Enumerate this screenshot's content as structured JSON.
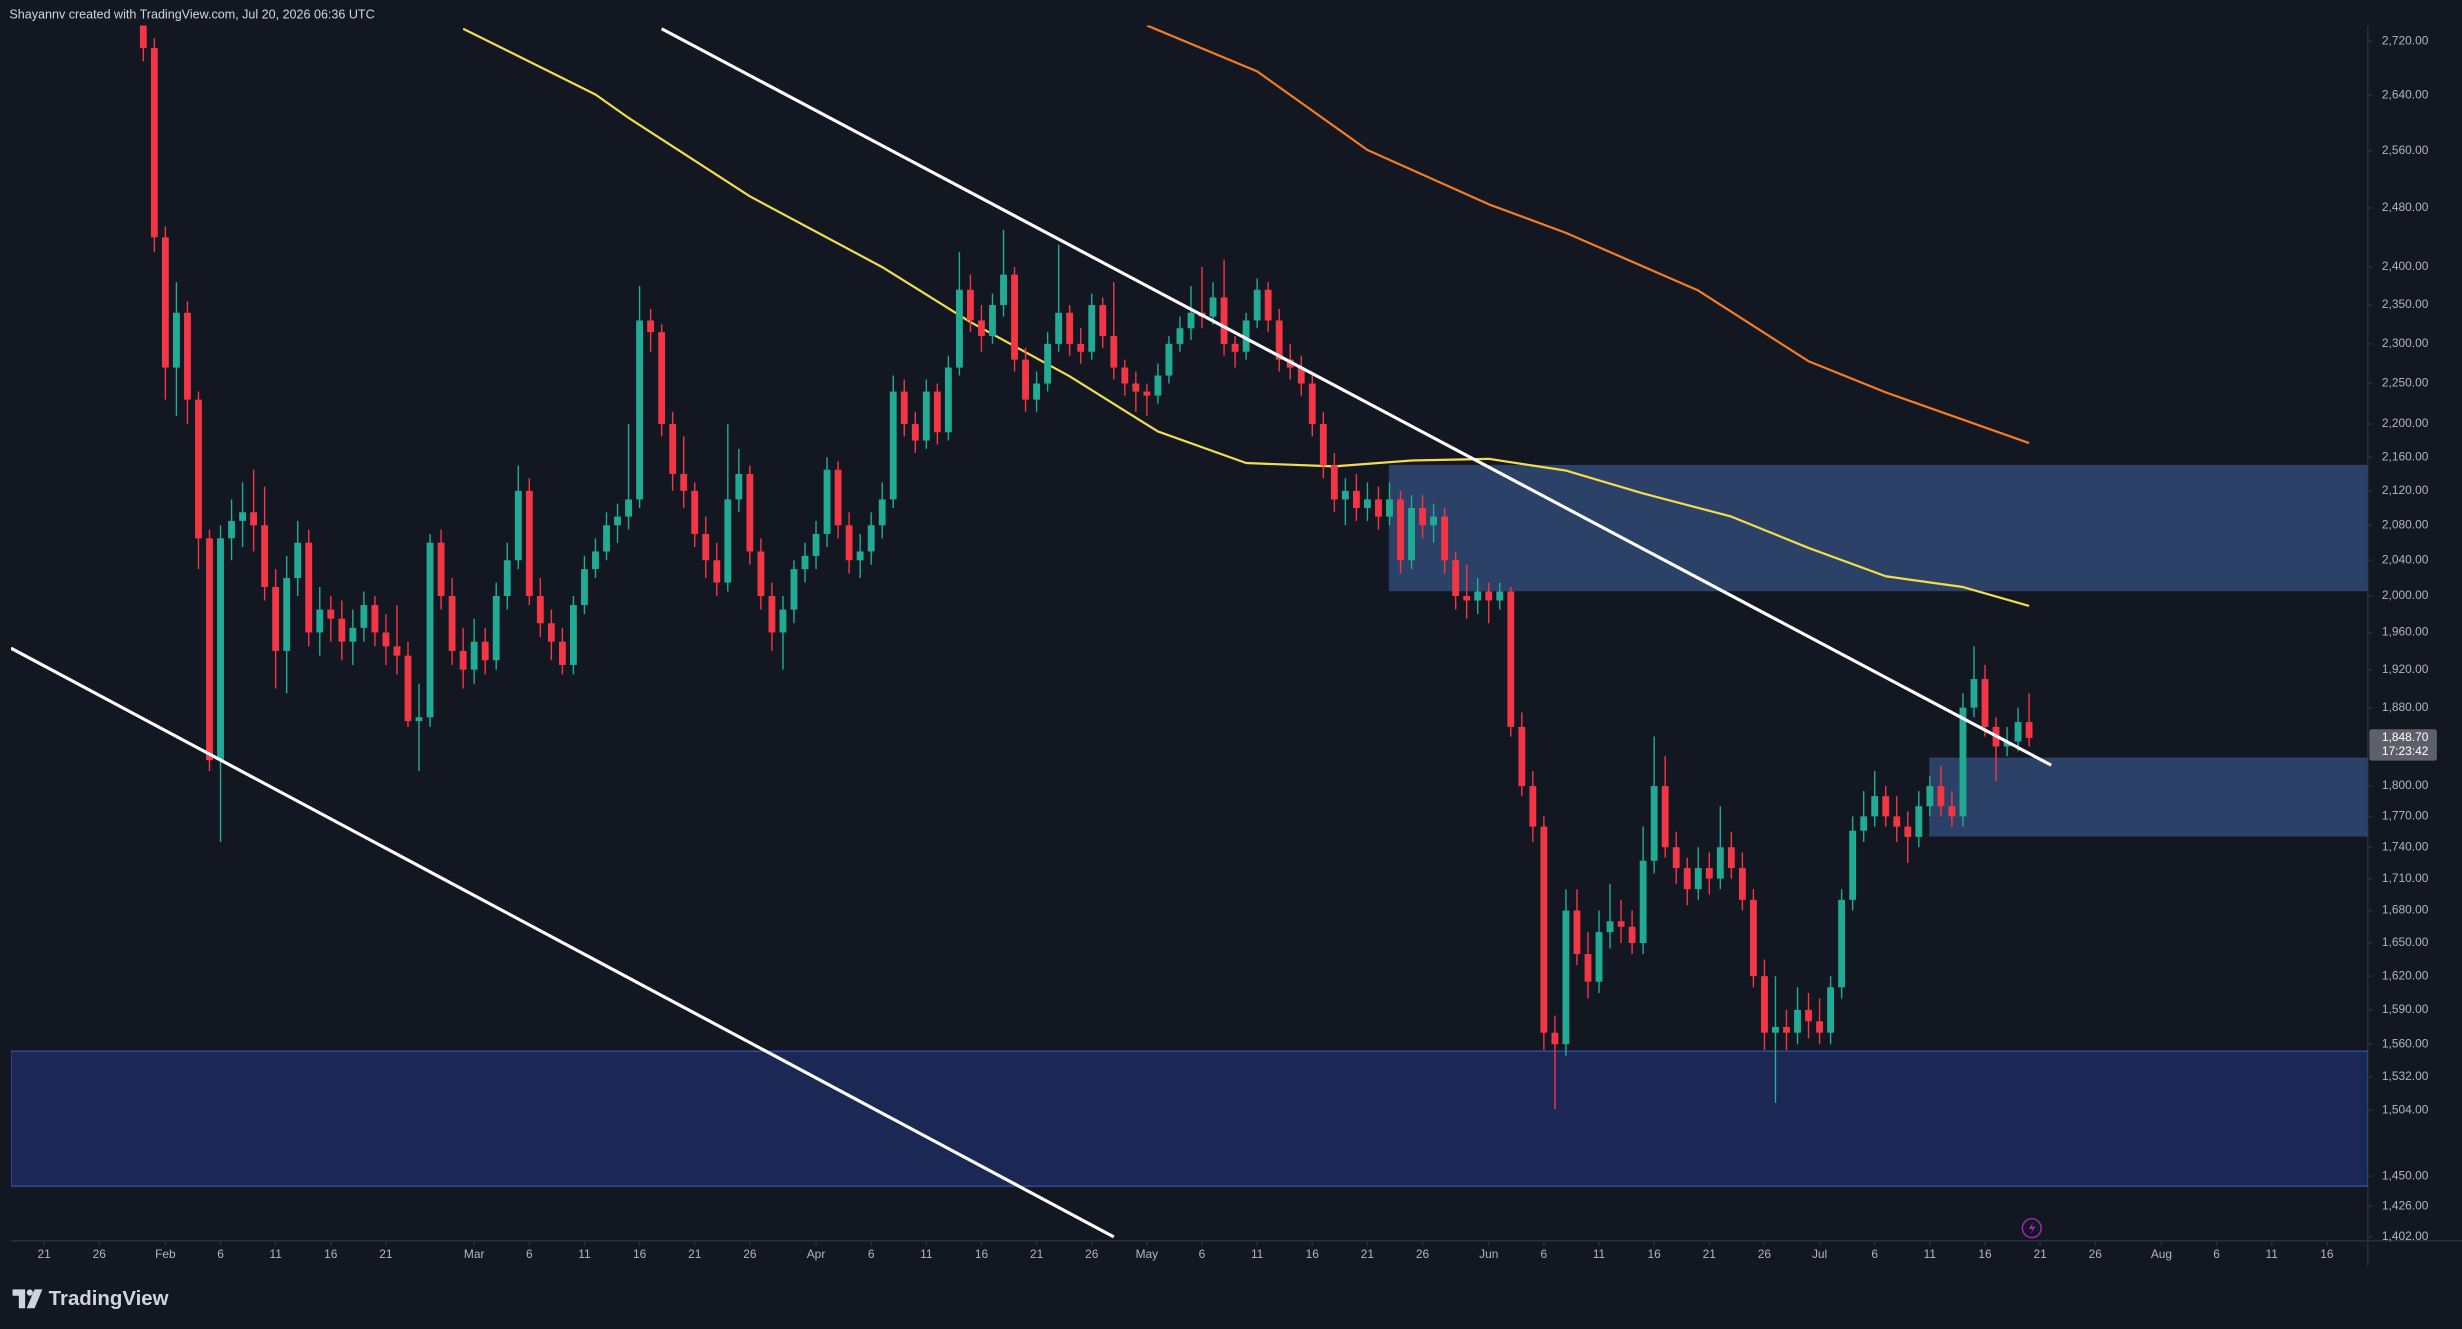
{
  "header": "Shayannv created with TradingView.com, Jul 20, 2026 06:36 UTC",
  "footer": "TradingView",
  "chart_data": {
    "type": "candlestick",
    "log_scale": true,
    "grid": false,
    "up_color": "#22ab94",
    "down_color": "#f23645",
    "xlim": [
      "01-18",
      "08-19"
    ],
    "ylim": [
      1399,
      2744
    ],
    "xticks": [
      {
        "value": "01-21",
        "label": "21"
      },
      {
        "value": "01-26",
        "label": "26"
      },
      {
        "value": "02-01",
        "label": "Feb"
      },
      {
        "value": "02-06",
        "label": "6"
      },
      {
        "value": "02-11",
        "label": "11"
      },
      {
        "value": "02-16",
        "label": "16"
      },
      {
        "value": "02-21",
        "label": "21"
      },
      {
        "value": "03-01",
        "label": "Mar"
      },
      {
        "value": "03-06",
        "label": "6"
      },
      {
        "value": "03-11",
        "label": "11"
      },
      {
        "value": "03-16",
        "label": "16"
      },
      {
        "value": "03-21",
        "label": "21"
      },
      {
        "value": "03-26",
        "label": "26"
      },
      {
        "value": "04-01",
        "label": "Apr"
      },
      {
        "value": "04-06",
        "label": "6"
      },
      {
        "value": "04-11",
        "label": "11"
      },
      {
        "value": "04-16",
        "label": "16"
      },
      {
        "value": "04-21",
        "label": "21"
      },
      {
        "value": "04-26",
        "label": "26"
      },
      {
        "value": "05-01",
        "label": "May"
      },
      {
        "value": "05-06",
        "label": "6"
      },
      {
        "value": "05-11",
        "label": "11"
      },
      {
        "value": "05-16",
        "label": "16"
      },
      {
        "value": "05-21",
        "label": "21"
      },
      {
        "value": "05-26",
        "label": "26"
      },
      {
        "value": "06-01",
        "label": "Jun"
      },
      {
        "value": "06-06",
        "label": "6"
      },
      {
        "value": "06-11",
        "label": "11"
      },
      {
        "value": "06-16",
        "label": "16"
      },
      {
        "value": "06-21",
        "label": "21"
      },
      {
        "value": "06-26",
        "label": "26"
      },
      {
        "value": "07-01",
        "label": "Jul"
      },
      {
        "value": "07-06",
        "label": "6"
      },
      {
        "value": "07-11",
        "label": "11"
      },
      {
        "value": "07-16",
        "label": "16"
      },
      {
        "value": "07-21",
        "label": "21"
      },
      {
        "value": "07-26",
        "label": "26"
      },
      {
        "value": "08-01",
        "label": "Aug"
      },
      {
        "value": "08-06",
        "label": "6"
      },
      {
        "value": "08-11",
        "label": "11"
      },
      {
        "value": "08-16",
        "label": "16"
      }
    ],
    "yticks": [
      {
        "value": 2720,
        "label": "2,720.00"
      },
      {
        "value": 2640,
        "label": "2,640.00"
      },
      {
        "value": 2560,
        "label": "2,560.00"
      },
      {
        "value": 2480,
        "label": "2,480.00"
      },
      {
        "value": 2400,
        "label": "2,400.00"
      },
      {
        "value": 2350,
        "label": "2,350.00"
      },
      {
        "value": 2300,
        "label": "2,300.00"
      },
      {
        "value": 2250,
        "label": "2,250.00"
      },
      {
        "value": 2200,
        "label": "2,200.00"
      },
      {
        "value": 2160,
        "label": "2,160.00"
      },
      {
        "value": 2120,
        "label": "2,120.00"
      },
      {
        "value": 2080,
        "label": "2,080.00"
      },
      {
        "value": 2040,
        "label": "2,040.00"
      },
      {
        "value": 2000,
        "label": "2,000.00"
      },
      {
        "value": 1960,
        "label": "1,960.00"
      },
      {
        "value": 1920,
        "label": "1,920.00"
      },
      {
        "value": 1880,
        "label": "1,880.00"
      },
      {
        "value": 1800,
        "label": "1,800.00"
      },
      {
        "value": 1770,
        "label": "1,770.00"
      },
      {
        "value": 1740,
        "label": "1,740.00"
      },
      {
        "value": 1710,
        "label": "1,710.00"
      },
      {
        "value": 1680,
        "label": "1,680.00"
      },
      {
        "value": 1650,
        "label": "1,650.00"
      },
      {
        "value": 1620,
        "label": "1,620.00"
      },
      {
        "value": 1590,
        "label": "1,590.00"
      },
      {
        "value": 1560,
        "label": "1,560.00"
      },
      {
        "value": 1532,
        "label": "1,532.00"
      },
      {
        "value": 1504,
        "label": "1,504.00"
      },
      {
        "value": 1450,
        "label": "1,450.00"
      },
      {
        "value": 1426,
        "label": "1,426.00"
      },
      {
        "value": 1402,
        "label": "1,402.00"
      }
    ],
    "last_price": {
      "value": 1848.7,
      "label": "1,848.70",
      "countdown": "17:23:42",
      "color": "#5d606b"
    },
    "x": [
      "01-30",
      "01-31",
      "02-01",
      "02-02",
      "02-03",
      "02-04",
      "02-05",
      "02-06",
      "02-07",
      "02-08",
      "02-09",
      "02-10",
      "02-11",
      "02-12",
      "02-13",
      "02-14",
      "02-15",
      "02-16",
      "02-17",
      "02-18",
      "02-19",
      "02-20",
      "02-21",
      "02-22",
      "02-23",
      "02-24",
      "02-25",
      "02-26",
      "02-27",
      "02-28",
      "03-01",
      "03-02",
      "03-03",
      "03-04",
      "03-05",
      "03-06",
      "03-07",
      "03-08",
      "03-09",
      "03-10",
      "03-11",
      "03-12",
      "03-13",
      "03-14",
      "03-15",
      "03-16",
      "03-17",
      "03-18",
      "03-19",
      "03-20",
      "03-21",
      "03-22",
      "03-23",
      "03-24",
      "03-25",
      "03-26",
      "03-27",
      "03-28",
      "03-29",
      "03-30",
      "03-31",
      "04-01",
      "04-02",
      "04-03",
      "04-04",
      "04-05",
      "04-06",
      "04-07",
      "04-08",
      "04-09",
      "04-10",
      "04-11",
      "04-12",
      "04-13",
      "04-14",
      "04-15",
      "04-16",
      "04-17",
      "04-18",
      "04-19",
      "04-20",
      "04-21",
      "04-22",
      "04-23",
      "04-24",
      "04-25",
      "04-26",
      "04-27",
      "04-28",
      "04-29",
      "04-30",
      "05-01",
      "05-02",
      "05-03",
      "05-04",
      "05-05",
      "05-06",
      "05-07",
      "05-08",
      "05-09",
      "05-10",
      "05-11",
      "05-12",
      "05-13",
      "05-14",
      "05-15",
      "05-16",
      "05-17",
      "05-18",
      "05-19",
      "05-20",
      "05-21",
      "05-22",
      "05-23",
      "05-24",
      "05-25",
      "05-26",
      "05-27",
      "05-28",
      "05-29",
      "05-30",
      "05-31",
      "06-01",
      "06-02",
      "06-03",
      "06-04",
      "06-05",
      "06-06",
      "06-07",
      "06-08",
      "06-09",
      "06-10",
      "06-11",
      "06-12",
      "06-13",
      "06-14",
      "06-15",
      "06-16",
      "06-17",
      "06-18",
      "06-19",
      "06-20",
      "06-21",
      "06-22",
      "06-23",
      "06-24",
      "06-25",
      "06-26",
      "06-27",
      "06-28",
      "06-29",
      "06-30",
      "07-01",
      "07-02",
      "07-03",
      "07-04",
      "07-05",
      "07-06",
      "07-07",
      "07-08",
      "07-09",
      "07-10",
      "07-11",
      "07-12",
      "07-13",
      "07-14",
      "07-15",
      "07-16",
      "07-17",
      "07-18",
      "07-19",
      "07-20"
    ],
    "open": [
      2745,
      2710,
      2440,
      2270,
      2340,
      2230,
      2065,
      1826,
      2065,
      2085,
      2095,
      2080,
      2010,
      1940,
      2020,
      2060,
      1960,
      1985,
      1975,
      1950,
      1965,
      1990,
      1960,
      1945,
      1935,
      1866,
      1870,
      2060,
      2000,
      1940,
      1920,
      1950,
      1930,
      2000,
      2040,
      2120,
      2000,
      1970,
      1950,
      1925,
      1990,
      2030,
      2050,
      2080,
      2090,
      2110,
      2330,
      2315,
      2200,
      2140,
      2120,
      2070,
      2040,
      2015,
      2110,
      2140,
      2050,
      2000,
      1960,
      1985,
      2030,
      2045,
      2070,
      2145,
      2080,
      2040,
      2050,
      2080,
      2110,
      2240,
      2200,
      2180,
      2240,
      2190,
      2270,
      2370,
      2330,
      2310,
      2350,
      2390,
      2280,
      2230,
      2250,
      2300,
      2340,
      2300,
      2290,
      2350,
      2310,
      2270,
      2250,
      2240,
      2235,
      2260,
      2300,
      2320,
      2340,
      2335,
      2360,
      2300,
      2290,
      2330,
      2370,
      2330,
      2280,
      2270,
      2250,
      2200,
      2150,
      2110,
      2120,
      2100,
      2110,
      2090,
      2110,
      2040,
      2100,
      2080,
      2090,
      2040,
      2000,
      1995,
      2005,
      1995,
      2005,
      1860,
      1800,
      1760,
      1570,
      1560,
      1680,
      1640,
      1615,
      1660,
      1670,
      1665,
      1650,
      1727,
      1800,
      1740,
      1720,
      1700,
      1720,
      1710,
      1740,
      1720,
      1690,
      1620,
      1570,
      1575,
      1570,
      1590,
      1580,
      1570,
      1610,
      1690,
      1756,
      1770,
      1790,
      1770,
      1760,
      1750,
      1780,
      1800,
      1780,
      1770,
      1880,
      1910,
      1860,
      1840,
      1845,
      1865
    ],
    "high": [
      2760,
      2725,
      2455,
      2380,
      2355,
      2240,
      2075,
      2080,
      2110,
      2130,
      2145,
      2125,
      2030,
      2045,
      2085,
      2075,
      2010,
      2000,
      1995,
      1985,
      2005,
      2000,
      1980,
      1990,
      1950,
      1905,
      2070,
      2075,
      2020,
      1965,
      1975,
      1965,
      2015,
      2060,
      2150,
      2135,
      2020,
      1985,
      1965,
      2000,
      2045,
      2065,
      2095,
      2105,
      2200,
      2375,
      2345,
      2325,
      2215,
      2185,
      2130,
      2090,
      2060,
      2200,
      2170,
      2150,
      2065,
      2015,
      2000,
      2040,
      2060,
      2085,
      2160,
      2155,
      2095,
      2070,
      2095,
      2130,
      2260,
      2255,
      2215,
      2255,
      2250,
      2285,
      2420,
      2390,
      2350,
      2365,
      2450,
      2400,
      2295,
      2265,
      2315,
      2430,
      2350,
      2320,
      2365,
      2360,
      2380,
      2280,
      2265,
      2250,
      2275,
      2310,
      2335,
      2375,
      2400,
      2380,
      2410,
      2310,
      2340,
      2385,
      2380,
      2345,
      2300,
      2285,
      2260,
      2215,
      2165,
      2135,
      2140,
      2130,
      2125,
      2130,
      2120,
      2115,
      2115,
      2105,
      2100,
      2050,
      2035,
      2020,
      2015,
      2015,
      2010,
      1875,
      1815,
      1770,
      1585,
      1700,
      1700,
      1660,
      1680,
      1705,
      1690,
      1680,
      1760,
      1850,
      1830,
      1755,
      1730,
      1740,
      1735,
      1780,
      1755,
      1735,
      1700,
      1635,
      1620,
      1590,
      1610,
      1605,
      1600,
      1620,
      1700,
      1770,
      1795,
      1815,
      1800,
      1790,
      1775,
      1795,
      1810,
      1820,
      1795,
      1895,
      1945,
      1925,
      1870,
      1860,
      1880,
      1895
    ],
    "low": [
      2690,
      2420,
      2230,
      2210,
      2200,
      2030,
      1815,
      1745,
      2040,
      2055,
      2050,
      1995,
      1900,
      1895,
      2000,
      1945,
      1935,
      1950,
      1930,
      1925,
      1950,
      1945,
      1925,
      1915,
      1860,
      1815,
      1860,
      1985,
      1925,
      1900,
      1905,
      1915,
      1920,
      1985,
      2030,
      1990,
      1955,
      1930,
      1915,
      1915,
      1980,
      2020,
      2040,
      2060,
      2075,
      2100,
      2290,
      2185,
      2120,
      2100,
      2055,
      2020,
      2000,
      2005,
      2095,
      2035,
      1985,
      1940,
      1920,
      1970,
      2015,
      2030,
      2055,
      2065,
      2025,
      2020,
      2035,
      2065,
      2100,
      2185,
      2165,
      2170,
      2175,
      2180,
      2260,
      2315,
      2290,
      2300,
      2335,
      2265,
      2215,
      2215,
      2240,
      2290,
      2285,
      2275,
      2280,
      2295,
      2255,
      2235,
      2215,
      2210,
      2225,
      2250,
      2290,
      2305,
      2320,
      2325,
      2285,
      2270,
      2280,
      2320,
      2315,
      2265,
      2255,
      2235,
      2185,
      2135,
      2095,
      2080,
      2085,
      2085,
      2075,
      2080,
      2025,
      2030,
      2065,
      2060,
      2025,
      1985,
      1975,
      1980,
      1970,
      1985,
      1850,
      1790,
      1745,
      1555,
      1505,
      1550,
      1630,
      1600,
      1605,
      1645,
      1650,
      1640,
      1640,
      1715,
      1730,
      1705,
      1685,
      1690,
      1695,
      1700,
      1710,
      1680,
      1610,
      1555,
      1510,
      1555,
      1560,
      1565,
      1560,
      1560,
      1600,
      1680,
      1745,
      1760,
      1760,
      1745,
      1725,
      1740,
      1770,
      1770,
      1760,
      1760,
      1870,
      1850,
      1805,
      1830,
      1835,
      1840
    ],
    "close": [
      2710,
      2440,
      2270,
      2340,
      2230,
      2065,
      1826,
      2065,
      2085,
      2095,
      2080,
      2010,
      1940,
      2020,
      2060,
      1960,
      1985,
      1975,
      1950,
      1965,
      1990,
      1960,
      1945,
      1935,
      1866,
      1870,
      2060,
      2000,
      1940,
      1920,
      1950,
      1930,
      2000,
      2040,
      2120,
      2000,
      1970,
      1950,
      1925,
      1990,
      2030,
      2050,
      2080,
      2090,
      2110,
      2330,
      2315,
      2200,
      2140,
      2120,
      2070,
      2040,
      2015,
      2110,
      2140,
      2050,
      2000,
      1960,
      1985,
      2030,
      2045,
      2070,
      2145,
      2080,
      2040,
      2050,
      2080,
      2110,
      2240,
      2200,
      2180,
      2240,
      2190,
      2270,
      2370,
      2330,
      2310,
      2350,
      2390,
      2280,
      2230,
      2250,
      2300,
      2340,
      2300,
      2290,
      2350,
      2310,
      2270,
      2250,
      2240,
      2235,
      2260,
      2300,
      2320,
      2340,
      2335,
      2360,
      2300,
      2290,
      2330,
      2370,
      2330,
      2280,
      2270,
      2250,
      2200,
      2150,
      2110,
      2120,
      2100,
      2110,
      2090,
      2110,
      2040,
      2100,
      2080,
      2090,
      2040,
      2000,
      1995,
      2005,
      1995,
      2005,
      1860,
      1800,
      1760,
      1570,
      1560,
      1680,
      1640,
      1615,
      1660,
      1670,
      1665,
      1650,
      1727,
      1800,
      1740,
      1720,
      1700,
      1720,
      1710,
      1740,
      1720,
      1690,
      1620,
      1570,
      1575,
      1570,
      1590,
      1580,
      1570,
      1610,
      1690,
      1756,
      1770,
      1790,
      1770,
      1760,
      1750,
      1780,
      1800,
      1780,
      1770,
      1880,
      1910,
      1860,
      1840,
      1845,
      1865,
      1848.7
    ],
    "zones": [
      {
        "start": "01-18",
        "low": 1442,
        "high": 1554,
        "color": "#1b2856",
        "border": "#3552b0"
      },
      {
        "start": "05-23",
        "low": 2006,
        "high": 2150,
        "color": "#2c4168",
        "border": "#2c4168"
      },
      {
        "start": "07-11",
        "low": 1751,
        "high": 1828,
        "color": "#2c4168",
        "border": "#2c4168"
      }
    ],
    "moving_averages": [
      {
        "color": "#f2dd4c",
        "x": [
          "02-28",
          "03-12",
          "03-15",
          "03-26",
          "04-07",
          "04-15",
          "04-24",
          "05-02",
          "05-10",
          "05-18",
          "05-25",
          "06-01",
          "06-08",
          "06-15",
          "06-23",
          "06-30",
          "07-07",
          "07-14",
          "07-20"
        ],
        "values": [
          2739,
          2641,
          2607,
          2496,
          2400,
          2328,
          2259,
          2191,
          2153,
          2149,
          2156,
          2158,
          2144,
          2117,
          2090,
          2054,
          2022,
          2010,
          1989
        ]
      },
      {
        "color": "#f57c20",
        "x": [
          "05-01",
          "05-11",
          "05-21",
          "06-01",
          "06-08",
          "06-20",
          "06-30",
          "07-07",
          "07-20"
        ],
        "values": [
          2744,
          2675,
          2561,
          2485,
          2446,
          2369,
          2278,
          2239,
          2177
        ]
      }
    ],
    "trend_lines": [
      {
        "color": "#ffffff",
        "x": [
          "01-18",
          "04-28"
        ],
        "values": [
          1943,
          1402
        ]
      },
      {
        "color": "#ffffff",
        "x": [
          "03-18",
          "07-22"
        ],
        "values": [
          2739,
          1821
        ]
      }
    ]
  }
}
